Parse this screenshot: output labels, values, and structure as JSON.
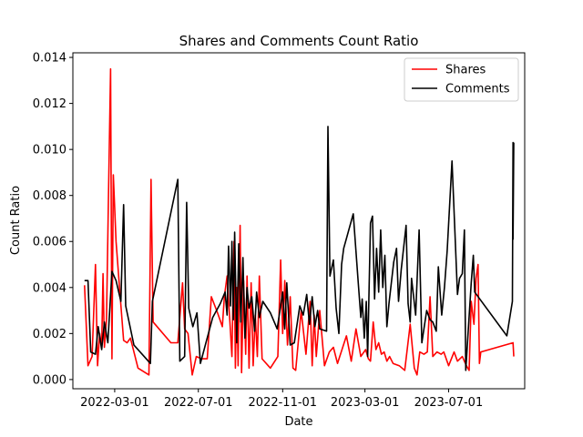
{
  "chart_data": {
    "type": "line",
    "title": "Shares and Comments Count Ratio",
    "xlabel": "Date",
    "ylabel": "Count Ratio",
    "x_type": "date",
    "xlim": [
      "2021-12-30",
      "2023-10-20"
    ],
    "ylim": [
      -0.0004,
      0.0142
    ],
    "x_ticks": [
      "2022-03-01",
      "2022-07-01",
      "2022-11-01",
      "2023-03-01",
      "2023-07-01"
    ],
    "y_ticks": [
      0.0,
      0.002,
      0.004,
      0.006,
      0.008,
      0.01,
      0.012,
      0.014
    ],
    "y_tick_labels": [
      "0.000",
      "0.002",
      "0.004",
      "0.006",
      "0.008",
      "0.010",
      "0.012",
      "0.014"
    ],
    "legend_position": "top-right",
    "grid": false,
    "series": [
      {
        "name": "Shares",
        "color": "#ff0000",
        "points": [
          [
            "2022-01-16",
            0.0041
          ],
          [
            "2022-01-21",
            0.0006
          ],
          [
            "2022-01-27",
            0.001
          ],
          [
            "2022-02-01",
            0.005
          ],
          [
            "2022-02-04",
            0.0006
          ],
          [
            "2022-02-07",
            0.002
          ],
          [
            "2022-02-10",
            0.0014
          ],
          [
            "2022-02-12",
            0.0046
          ],
          [
            "2022-02-14",
            0.0014
          ],
          [
            "2022-02-17",
            0.0026
          ],
          [
            "2022-02-20",
            0.008
          ],
          [
            "2022-02-23",
            0.0135
          ],
          [
            "2022-02-25",
            0.0009
          ],
          [
            "2022-02-27",
            0.0089
          ],
          [
            "2022-03-03",
            0.006
          ],
          [
            "2022-03-08",
            0.004
          ],
          [
            "2022-03-14",
            0.0017
          ],
          [
            "2022-03-19",
            0.0016
          ],
          [
            "2022-03-24",
            0.0018
          ],
          [
            "2022-04-04",
            0.0005
          ],
          [
            "2022-04-20",
            0.0002
          ],
          [
            "2022-04-23",
            0.0087
          ],
          [
            "2022-04-26",
            0.0025
          ],
          [
            "2022-05-22",
            0.0016
          ],
          [
            "2022-06-01",
            0.0016
          ],
          [
            "2022-06-08",
            0.0042
          ],
          [
            "2022-06-11",
            0.0022
          ],
          [
            "2022-06-16",
            0.002
          ],
          [
            "2022-06-22",
            0.0002
          ],
          [
            "2022-06-28",
            0.001
          ],
          [
            "2022-07-06",
            0.0009
          ],
          [
            "2022-07-14",
            0.0009
          ],
          [
            "2022-07-20",
            0.0036
          ],
          [
            "2022-07-29",
            0.0029
          ],
          [
            "2022-08-05",
            0.0023
          ],
          [
            "2022-08-08",
            0.0036
          ],
          [
            "2022-08-12",
            0.0045
          ],
          [
            "2022-08-16",
            0.0025
          ],
          [
            "2022-08-19",
            0.001
          ],
          [
            "2022-08-22",
            0.006
          ],
          [
            "2022-08-24",
            0.0005
          ],
          [
            "2022-08-26",
            0.004
          ],
          [
            "2022-08-28",
            0.0006
          ],
          [
            "2022-08-31",
            0.0067
          ],
          [
            "2022-09-02",
            0.0003
          ],
          [
            "2022-09-05",
            0.0043
          ],
          [
            "2022-09-08",
            0.0011
          ],
          [
            "2022-09-10",
            0.0045
          ],
          [
            "2022-09-13",
            0.0005
          ],
          [
            "2022-09-16",
            0.0042
          ],
          [
            "2022-09-19",
            0.0006
          ],
          [
            "2022-09-22",
            0.0028
          ],
          [
            "2022-09-25",
            0.001
          ],
          [
            "2022-09-28",
            0.0045
          ],
          [
            "2022-10-02",
            0.0009
          ],
          [
            "2022-10-14",
            0.0005
          ],
          [
            "2022-10-25",
            0.001
          ],
          [
            "2022-10-29",
            0.0052
          ],
          [
            "2022-11-01",
            0.002
          ],
          [
            "2022-11-04",
            0.0043
          ],
          [
            "2022-11-08",
            0.0015
          ],
          [
            "2022-11-12",
            0.0036
          ],
          [
            "2022-11-16",
            0.0005
          ],
          [
            "2022-11-20",
            0.0004
          ],
          [
            "2022-11-28",
            0.003
          ],
          [
            "2022-12-05",
            0.0011
          ],
          [
            "2022-12-11",
            0.0034
          ],
          [
            "2022-12-14",
            0.0006
          ],
          [
            "2022-12-17",
            0.0028
          ],
          [
            "2022-12-20",
            0.001
          ],
          [
            "2022-12-25",
            0.003
          ],
          [
            "2023-01-01",
            0.0006
          ],
          [
            "2023-01-08",
            0.0012
          ],
          [
            "2023-01-14",
            0.0014
          ],
          [
            "2023-01-20",
            0.0007
          ],
          [
            "2023-02-02",
            0.0019
          ],
          [
            "2023-02-09",
            0.0008
          ],
          [
            "2023-02-16",
            0.0022
          ],
          [
            "2023-02-23",
            0.001
          ],
          [
            "2023-03-02",
            0.0013
          ],
          [
            "2023-03-06",
            0.0009
          ],
          [
            "2023-03-09",
            0.0008
          ],
          [
            "2023-03-13",
            0.0025
          ],
          [
            "2023-03-17",
            0.0013
          ],
          [
            "2023-03-21",
            0.0016
          ],
          [
            "2023-03-25",
            0.0011
          ],
          [
            "2023-03-29",
            0.0012
          ],
          [
            "2023-04-02",
            0.0008
          ],
          [
            "2023-04-06",
            0.001
          ],
          [
            "2023-04-11",
            0.0007
          ],
          [
            "2023-04-20",
            0.0006
          ],
          [
            "2023-04-28",
            0.0004
          ],
          [
            "2023-05-06",
            0.0024
          ],
          [
            "2023-05-12",
            0.0005
          ],
          [
            "2023-05-16",
            0.0002
          ],
          [
            "2023-05-20",
            0.0012
          ],
          [
            "2023-05-26",
            0.0011
          ],
          [
            "2023-05-31",
            0.0012
          ],
          [
            "2023-06-04",
            0.0036
          ],
          [
            "2023-06-08",
            0.001
          ],
          [
            "2023-06-14",
            0.0012
          ],
          [
            "2023-06-20",
            0.0011
          ],
          [
            "2023-06-24",
            0.0012
          ],
          [
            "2023-07-01",
            0.0006
          ],
          [
            "2023-07-09",
            0.0012
          ],
          [
            "2023-07-14",
            0.0008
          ],
          [
            "2023-07-21",
            0.001
          ],
          [
            "2023-07-27",
            0.0006
          ],
          [
            "2023-07-31",
            0.0004
          ],
          [
            "2023-08-03",
            0.0034
          ],
          [
            "2023-08-07",
            0.0024
          ],
          [
            "2023-08-10",
            0.0044
          ],
          [
            "2023-08-13",
            0.005
          ],
          [
            "2023-08-15",
            0.0007
          ],
          [
            "2023-08-17",
            0.0012
          ],
          [
            "2023-10-03",
            0.0016
          ],
          [
            "2023-10-04",
            0.001
          ]
        ]
      },
      {
        "name": "Comments",
        "color": "#000000",
        "points": [
          [
            "2022-01-16",
            0.0043
          ],
          [
            "2022-01-21",
            0.0043
          ],
          [
            "2022-01-25",
            0.0012
          ],
          [
            "2022-02-01",
            0.0011
          ],
          [
            "2022-02-05",
            0.0023
          ],
          [
            "2022-02-10",
            0.0013
          ],
          [
            "2022-02-14",
            0.0025
          ],
          [
            "2022-02-19",
            0.0016
          ],
          [
            "2022-02-25",
            0.0047
          ],
          [
            "2022-03-03",
            0.0043
          ],
          [
            "2022-03-10",
            0.0034
          ],
          [
            "2022-03-14",
            0.0076
          ],
          [
            "2022-03-17",
            0.0032
          ],
          [
            "2022-03-29",
            0.0015
          ],
          [
            "2022-04-22",
            0.0007
          ],
          [
            "2022-04-25",
            0.0034
          ],
          [
            "2022-06-01",
            0.0087
          ],
          [
            "2022-06-04",
            0.0008
          ],
          [
            "2022-06-11",
            0.001
          ],
          [
            "2022-06-14",
            0.0077
          ],
          [
            "2022-06-17",
            0.0031
          ],
          [
            "2022-06-23",
            0.0023
          ],
          [
            "2022-06-29",
            0.0029
          ],
          [
            "2022-07-04",
            0.0007
          ],
          [
            "2022-07-22",
            0.0027
          ],
          [
            "2022-08-02",
            0.0033
          ],
          [
            "2022-08-09",
            0.0038
          ],
          [
            "2022-08-12",
            0.0028
          ],
          [
            "2022-08-14",
            0.0058
          ],
          [
            "2022-08-17",
            0.0032
          ],
          [
            "2022-08-19",
            0.006
          ],
          [
            "2022-08-21",
            0.0026
          ],
          [
            "2022-08-23",
            0.0064
          ],
          [
            "2022-08-26",
            0.0016
          ],
          [
            "2022-08-29",
            0.0059
          ],
          [
            "2022-09-01",
            0.0025
          ],
          [
            "2022-09-04",
            0.0053
          ],
          [
            "2022-09-07",
            0.0018
          ],
          [
            "2022-09-10",
            0.004
          ],
          [
            "2022-09-13",
            0.0031
          ],
          [
            "2022-09-17",
            0.0036
          ],
          [
            "2022-09-21",
            0.0021
          ],
          [
            "2022-09-24",
            0.0038
          ],
          [
            "2022-09-28",
            0.0027
          ],
          [
            "2022-10-03",
            0.0034
          ],
          [
            "2022-10-14",
            0.0029
          ],
          [
            "2022-10-24",
            0.0022
          ],
          [
            "2022-11-01",
            0.0038
          ],
          [
            "2022-11-04",
            0.0022
          ],
          [
            "2022-11-07",
            0.0042
          ],
          [
            "2022-11-12",
            0.0015
          ],
          [
            "2022-11-18",
            0.0016
          ],
          [
            "2022-11-26",
            0.0032
          ],
          [
            "2022-12-01",
            0.0028
          ],
          [
            "2022-12-06",
            0.0037
          ],
          [
            "2022-12-10",
            0.0024
          ],
          [
            "2022-12-14",
            0.0036
          ],
          [
            "2022-12-18",
            0.0023
          ],
          [
            "2022-12-22",
            0.003
          ],
          [
            "2022-12-25",
            0.0022
          ],
          [
            "2023-01-04",
            0.0021
          ],
          [
            "2023-01-06",
            0.011
          ],
          [
            "2023-01-09",
            0.0045
          ],
          [
            "2023-01-14",
            0.0052
          ],
          [
            "2023-01-18",
            0.0031
          ],
          [
            "2023-01-22",
            0.002
          ],
          [
            "2023-01-26",
            0.005
          ],
          [
            "2023-01-29",
            0.0057
          ],
          [
            "2023-02-12",
            0.0072
          ],
          [
            "2023-02-19",
            0.0043
          ],
          [
            "2023-02-23",
            0.0027
          ],
          [
            "2023-02-25",
            0.0035
          ],
          [
            "2023-02-28",
            0.0018
          ],
          [
            "2023-03-03",
            0.0034
          ],
          [
            "2023-03-05",
            0.001
          ],
          [
            "2023-03-09",
            0.0068
          ],
          [
            "2023-03-12",
            0.0071
          ],
          [
            "2023-03-15",
            0.0035
          ],
          [
            "2023-03-18",
            0.0057
          ],
          [
            "2023-03-21",
            0.0038
          ],
          [
            "2023-03-24",
            0.0065
          ],
          [
            "2023-03-27",
            0.004
          ],
          [
            "2023-03-30",
            0.0054
          ],
          [
            "2023-04-02",
            0.0023
          ],
          [
            "2023-04-05",
            0.0033
          ],
          [
            "2023-04-12",
            0.0051
          ],
          [
            "2023-04-16",
            0.0057
          ],
          [
            "2023-04-19",
            0.0034
          ],
          [
            "2023-04-23",
            0.0048
          ],
          [
            "2023-04-30",
            0.0067
          ],
          [
            "2023-05-03",
            0.0033
          ],
          [
            "2023-05-06",
            0.0025
          ],
          [
            "2023-05-08",
            0.0044
          ],
          [
            "2023-05-14",
            0.0028
          ],
          [
            "2023-05-19",
            0.0065
          ],
          [
            "2023-05-23",
            0.0016
          ],
          [
            "2023-05-30",
            0.003
          ],
          [
            "2023-06-04",
            0.0026
          ],
          [
            "2023-06-08",
            0.0025
          ],
          [
            "2023-06-13",
            0.0021
          ],
          [
            "2023-06-16",
            0.0049
          ],
          [
            "2023-06-21",
            0.0028
          ],
          [
            "2023-06-25",
            0.004
          ],
          [
            "2023-06-29",
            0.0056
          ],
          [
            "2023-07-06",
            0.0095
          ],
          [
            "2023-07-14",
            0.0037
          ],
          [
            "2023-07-17",
            0.0044
          ],
          [
            "2023-07-21",
            0.0046
          ],
          [
            "2023-07-24",
            0.0065
          ],
          [
            "2023-07-26",
            0.0004
          ],
          [
            "2023-08-03",
            0.0042
          ],
          [
            "2023-08-06",
            0.0054
          ],
          [
            "2023-08-08",
            0.0038
          ],
          [
            "2023-09-24",
            0.0019
          ],
          [
            "2023-10-02",
            0.0034
          ],
          [
            "2023-10-03",
            0.0103
          ],
          [
            "2023-10-03",
            0.0061
          ],
          [
            "2023-10-04",
            0.0103
          ]
        ]
      }
    ]
  }
}
